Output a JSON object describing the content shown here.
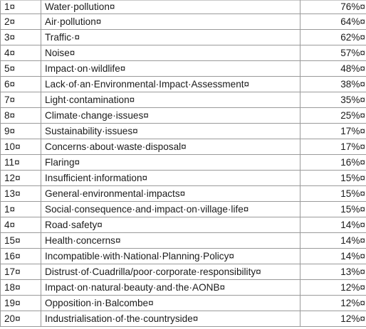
{
  "table": {
    "rows": [
      {
        "num": "1¤",
        "issue": "Water·pollution¤",
        "pct": "76%¤"
      },
      {
        "num": "2¤",
        "issue": "Air·pollution¤",
        "pct": "64%¤"
      },
      {
        "num": "3¤",
        "issue": "Traffic·¤",
        "pct": "62%¤"
      },
      {
        "num": "4¤",
        "issue": "Noise¤",
        "pct": "57%¤"
      },
      {
        "num": "5¤",
        "issue": "Impact·on·wildlife¤",
        "pct": "48%¤"
      },
      {
        "num": "6¤",
        "issue": "Lack·of·an·Environmental·Impact·Assessment¤",
        "pct": "38%¤"
      },
      {
        "num": "7¤",
        "issue": "Light·contamination¤",
        "pct": "35%¤"
      },
      {
        "num": "8¤",
        "issue": "Climate·change·issues¤",
        "pct": "25%¤"
      },
      {
        "num": "9¤",
        "issue": "Sustainability·issues¤",
        "pct": "17%¤"
      },
      {
        "num": "10¤",
        "issue": "Concerns·about·waste·disposal¤",
        "pct": "17%¤"
      },
      {
        "num": "11¤",
        "issue": "Flaring¤",
        "pct": "16%¤"
      },
      {
        "num": "12¤",
        "issue": "Insufficient·information¤",
        "pct": "15%¤"
      },
      {
        "num": "13¤",
        "issue": "General·environmental·impacts¤",
        "pct": "15%¤"
      },
      {
        "num": "1¤",
        "issue": "Social·consequence·and·impact·on·village·life¤",
        "pct": "15%¤"
      },
      {
        "num": "4¤",
        "issue": "Road·safety¤",
        "pct": "14%¤"
      },
      {
        "num": "15¤",
        "issue": "Health·concerns¤",
        "pct": "14%¤"
      },
      {
        "num": "16¤",
        "issue": "Incompatible·with·National·Planning·Policy¤",
        "pct": "14%¤"
      },
      {
        "num": "17¤",
        "issue": "Distrust·of·Cuadrilla/poor·corporate·responsibility¤",
        "pct": "13%¤"
      },
      {
        "num": "18¤",
        "issue": "Impact·on·natural·beauty·and·the·AONB¤",
        "pct": "12%¤"
      },
      {
        "num": "19¤",
        "issue": "Opposition·in·Balcombe¤",
        "pct": "12%¤"
      },
      {
        "num": "20¤",
        "issue": "Industrialisation·of·the·countryside¤",
        "pct": "12%¤"
      }
    ]
  }
}
